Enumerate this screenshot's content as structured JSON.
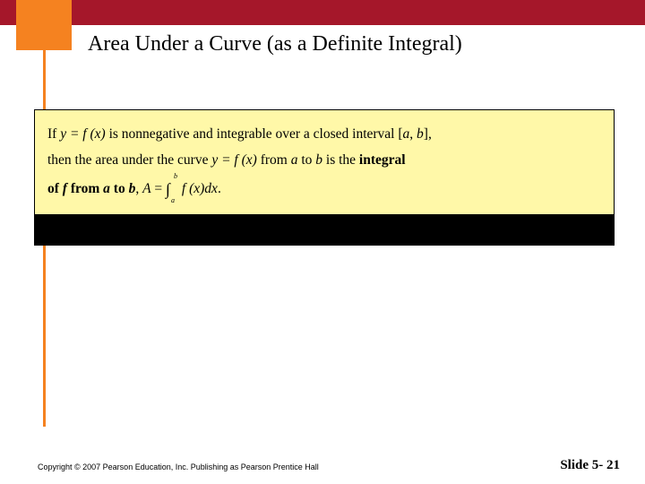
{
  "colors": {
    "top_bar": "#a5172a",
    "orange": "#f58220",
    "yellow_box_bg": "#fff8a8",
    "yellow_box_border": "#000000",
    "black_band": "#000000",
    "background": "#ffffff",
    "text": "#000000"
  },
  "title": "Area Under a Curve (as a Definite Integral)",
  "definition_box": {
    "line1_prefix": "If ",
    "line1_eq_lhs": "y =",
    "line1_eq_rhs": "f (x)",
    "line1_mid": " is nonnegative and integrable over a closed interval ",
    "line1_interval_open": "[",
    "line1_interval_a": "a",
    "line1_interval_sep": ", ",
    "line1_interval_b": "b",
    "line1_interval_close": "],",
    "line2_prefix": "then the area under the curve ",
    "line2_eq_lhs": "y =",
    "line2_eq_rhs": "f (x)",
    "line2_mid1": " from ",
    "line2_a": "a",
    "line2_mid2": " to ",
    "line2_b": "b",
    "line2_tail": " is the ",
    "line2_bold": "integral",
    "line3_bold1": "of ",
    "line3_bolditalic_f": "f",
    "line3_bold2": " from ",
    "line3_bolditalic_a": "a",
    "line3_bold3": " to ",
    "line3_bolditalic_b": "b",
    "line3_after": ", ",
    "line3_A": "A",
    "line3_eq": " = ",
    "line3_int_upper": "b",
    "line3_int_lower": "a",
    "line3_integrand": "f (x)dx",
    "line3_period": "."
  },
  "footer": {
    "copyright": "Copyright © 2007 Pearson Education, Inc. Publishing as Pearson Prentice Hall",
    "slide_label": "Slide 5- 21"
  }
}
